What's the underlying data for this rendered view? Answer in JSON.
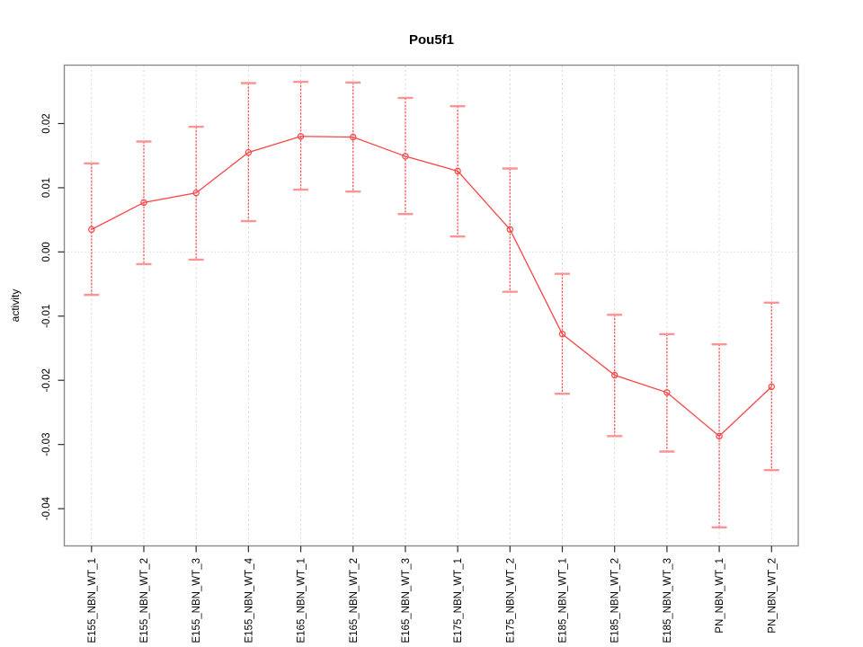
{
  "figure": {
    "background": "#ffffff"
  },
  "chart_data": {
    "type": "line",
    "title": "Pou5f1",
    "xlabel": "",
    "ylabel": "activity",
    "categories": [
      "E155_NBN_WT_1",
      "E155_NBN_WT_2",
      "E155_NBN_WT_3",
      "E155_NBN_WT_4",
      "E165_NBN_WT_1",
      "E165_NBN_WT_2",
      "E165_NBN_WT_3",
      "E175_NBN_WT_1",
      "E175_NBN_WT_2",
      "E185_NBN_WT_1",
      "E185_NBN_WT_2",
      "E185_NBN_WT_3",
      "PN_NBN_WT_1",
      "PN_NBN_WT_2"
    ],
    "series": [
      {
        "name": "activity",
        "values": [
          0.0035,
          0.0077,
          0.0092,
          0.0155,
          0.018,
          0.0179,
          0.0149,
          0.0126,
          0.0035,
          -0.0128,
          -0.0192,
          -0.0219,
          -0.0287,
          -0.021
        ],
        "error_upper": [
          0.0138,
          0.0172,
          0.0195,
          0.0263,
          0.0265,
          0.0264,
          0.024,
          0.0227,
          0.013,
          -0.0034,
          -0.0098,
          -0.0128,
          -0.0144,
          -0.0079
        ],
        "error_lower": [
          -0.0067,
          -0.0019,
          -0.0012,
          0.0048,
          0.0097,
          0.0094,
          0.0059,
          0.0024,
          -0.0062,
          -0.0221,
          -0.0287,
          -0.0311,
          -0.0429,
          -0.034
        ]
      }
    ],
    "yticks": [
      -0.04,
      -0.03,
      -0.02,
      -0.01,
      0,
      0.01,
      0.02
    ],
    "ytick_labels": [
      "-0.04",
      "-0.03",
      "-0.02",
      "-0.01",
      "0.00",
      "0.01",
      "0.02"
    ],
    "ylim": [
      -0.0458,
      0.0291
    ],
    "marker": "open-circle",
    "grid": {
      "vertical": "dashed line at each category",
      "horizontal": "dotted line at y = 0 only"
    },
    "legend": null,
    "colors": {
      "line": "#f84545",
      "point": "#f84545",
      "error_stem": "#fa5555",
      "error_cap": "#fb9494",
      "grid": "#dcdcdc",
      "zero_line": "#d9d9d9",
      "box": "#8a8a8a",
      "tick": "#2e2e2e",
      "text": "#000000"
    }
  }
}
